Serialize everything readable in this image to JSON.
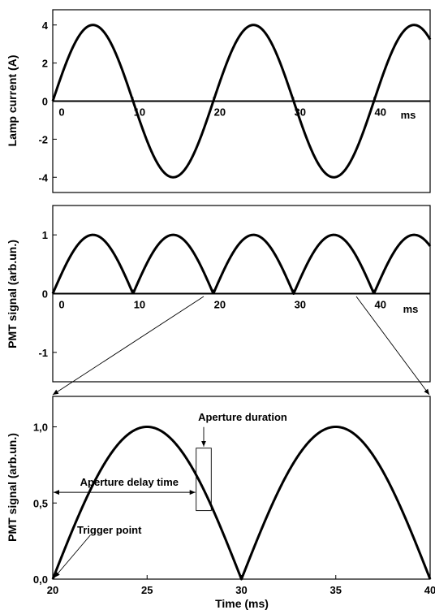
{
  "chart_data": [
    {
      "type": "line",
      "ylabel": "Lamp current (A)",
      "xlabel": "",
      "x_unit_label": "ms",
      "xlim": [
        0,
        47
      ],
      "ylim": [
        -4.8,
        4.8
      ],
      "yticks": [
        -4,
        -2,
        0,
        2,
        4
      ],
      "xtick_labels": [
        "0",
        "10",
        "20",
        "30",
        "40"
      ],
      "xtick_values": [
        0,
        10,
        20,
        30,
        40
      ],
      "series": [
        {
          "function": "sine",
          "amplitude": 4,
          "period_ms": 20,
          "x": [
            0,
            5,
            10,
            15,
            20,
            25,
            30,
            35,
            40,
            45,
            47
          ],
          "y": [
            0,
            4,
            0,
            -4,
            0,
            4,
            0,
            -4,
            0,
            4,
            0
          ]
        }
      ]
    },
    {
      "type": "line",
      "ylabel": "PMT signal (arb.un.)",
      "xlabel": "",
      "x_unit_label": "ms",
      "xlim": [
        0,
        47
      ],
      "ylim": [
        -1.5,
        1.5
      ],
      "yticks": [
        -1,
        0,
        1
      ],
      "xtick_labels": [
        "0",
        "10",
        "20",
        "30",
        "40"
      ],
      "xtick_values": [
        0,
        10,
        20,
        30,
        40
      ],
      "series": [
        {
          "function": "rectified sine",
          "amplitude": 1,
          "period_ms": 10,
          "x": [
            0,
            5,
            10,
            15,
            20,
            25,
            30,
            35,
            40,
            45,
            47
          ],
          "y": [
            0,
            1,
            0,
            1,
            0,
            1,
            0,
            1,
            0,
            1,
            0
          ]
        }
      ]
    },
    {
      "type": "line",
      "ylabel": "PMT signal (arb.un.)",
      "xlabel": "Time (ms)",
      "xlim": [
        20,
        40
      ],
      "ylim": [
        0,
        1.2
      ],
      "yticks": [
        0,
        0.5,
        1.0
      ],
      "ytick_labels": [
        "0,0",
        "0,5",
        "1,0"
      ],
      "xtick_labels": [
        "20",
        "25",
        "30",
        "35",
        "40"
      ],
      "xtick_values": [
        20,
        25,
        30,
        35,
        40
      ],
      "series": [
        {
          "function": "rectified sine",
          "amplitude": 1,
          "period_ms": 10,
          "x": [
            20,
            25,
            30,
            35,
            40
          ],
          "y": [
            0,
            1,
            0,
            1,
            0
          ]
        }
      ],
      "annotations": {
        "aperture_duration": "Aperture duration",
        "aperture_delay": "Aperture delay time",
        "trigger_point": "Trigger point",
        "aperture_window": {
          "x_start": 27.6,
          "x_end": 28.4,
          "y_low": 0.45,
          "y_high": 0.86
        },
        "delay_arrow_y": 0.57
      }
    }
  ]
}
